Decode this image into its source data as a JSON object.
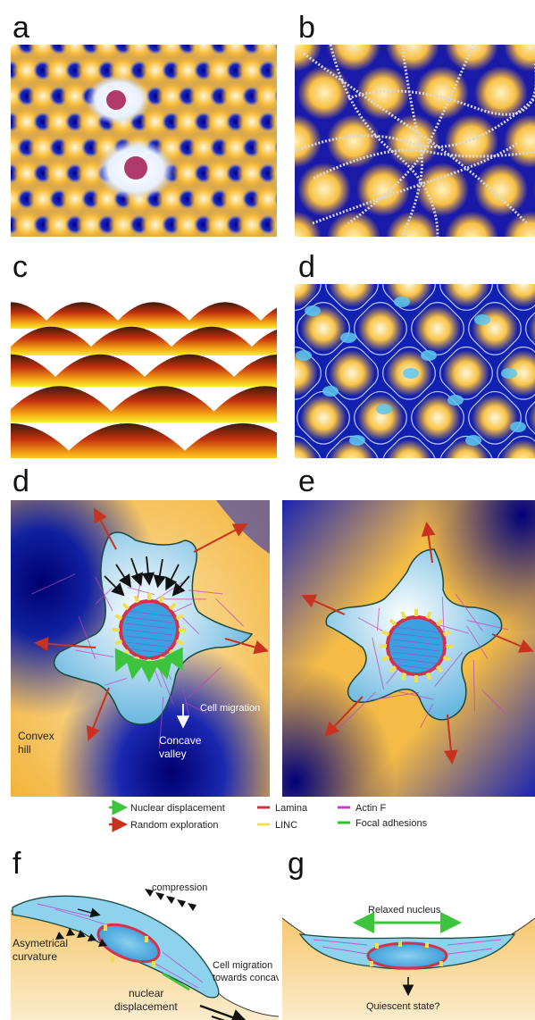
{
  "panels": {
    "a": {
      "letter": "a"
    },
    "b": {
      "letter": "b"
    },
    "c": {
      "letter": "c"
    },
    "d_top": {
      "letter": "d"
    },
    "d": {
      "letter": "d",
      "cell_migration": "Cell migration",
      "convex_line1": "Convex",
      "convex_line2": "hill",
      "concave_line1": "Concave",
      "concave_line2": "valley"
    },
    "e": {
      "letter": "e"
    },
    "f": {
      "letter": "f",
      "compression": "compression",
      "asym_line1": "Asymetrical",
      "asym_line2": "curvature",
      "nuclear_line1": "nuclear",
      "nuclear_line2": "displacement",
      "migration_line1": "Cell migration",
      "migration_line2": "towards concave"
    },
    "g": {
      "letter": "g",
      "relaxed": "Relaxed nucleus",
      "quiescent": "Quiescent state?"
    }
  },
  "legend": {
    "nuclear_displacement": "Nuclear displacement",
    "random_exploration": "Random exploration",
    "lamina": "Lamina",
    "linc": "LINC",
    "actin_f": "Actin F",
    "focal_adhesions": "Focal adhesions"
  },
  "colors": {
    "yellow": "#f5b731",
    "blue": "#0a10a8",
    "green_arrow": "#3cc43c",
    "red_arrow": "#c8321e",
    "lamina": "#d2324a",
    "linc": "#f0e050",
    "actin": "#c040c0",
    "focal": "#30c030",
    "cell_fill": "#7fc6e6"
  }
}
